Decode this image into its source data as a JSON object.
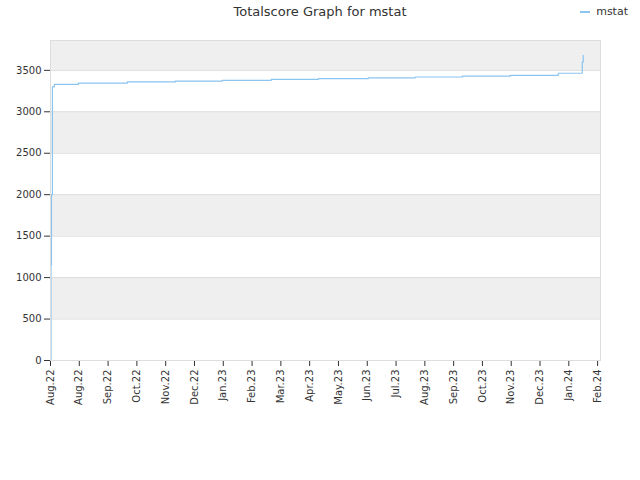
{
  "chart_data": {
    "type": "line",
    "title": "Totalscore Graph for mstat",
    "x": [
      0,
      0.5,
      1,
      2,
      4,
      29,
      80,
      130,
      179,
      230,
      279,
      331,
      380,
      429,
      479,
      529,
      554,
      555
    ],
    "series": [
      {
        "name": "mstat",
        "color": "#8cc4f0",
        "values": [
          0,
          1150,
          2000,
          3300,
          3330,
          3345,
          3360,
          3370,
          3380,
          3390,
          3400,
          3410,
          3420,
          3430,
          3440,
          3465,
          3600,
          3680
        ]
      }
    ],
    "xlim": [
      0,
      573
    ],
    "xticks": [
      {
        "value": 0,
        "label": "Aug.22"
      },
      {
        "value": 30,
        "label": "Aug.22"
      },
      {
        "value": 60,
        "label": "Sep.22"
      },
      {
        "value": 90,
        "label": "Oct.22"
      },
      {
        "value": 120,
        "label": "Nov.22"
      },
      {
        "value": 150,
        "label": "Dec.22"
      },
      {
        "value": 180,
        "label": "Jan.23"
      },
      {
        "value": 210,
        "label": "Feb.23"
      },
      {
        "value": 240,
        "label": "Mar.23"
      },
      {
        "value": 270,
        "label": "Apr.23"
      },
      {
        "value": 300,
        "label": "May.23"
      },
      {
        "value": 330,
        "label": "Jun.23"
      },
      {
        "value": 360,
        "label": "Jul.23"
      },
      {
        "value": 390,
        "label": "Aug.23"
      },
      {
        "value": 420,
        "label": "Sep.23"
      },
      {
        "value": 450,
        "label": "Oct.23"
      },
      {
        "value": 480,
        "label": "Nov.23"
      },
      {
        "value": 510,
        "label": "Dec.23"
      },
      {
        "value": 540,
        "label": "Jan.24"
      },
      {
        "value": 570,
        "label": "Feb.24"
      }
    ],
    "ylim": [
      0,
      3860
    ],
    "yticks": [
      0,
      500,
      1000,
      1500,
      2000,
      2500,
      3000,
      3500
    ],
    "grid": true,
    "legend": "top right"
  }
}
